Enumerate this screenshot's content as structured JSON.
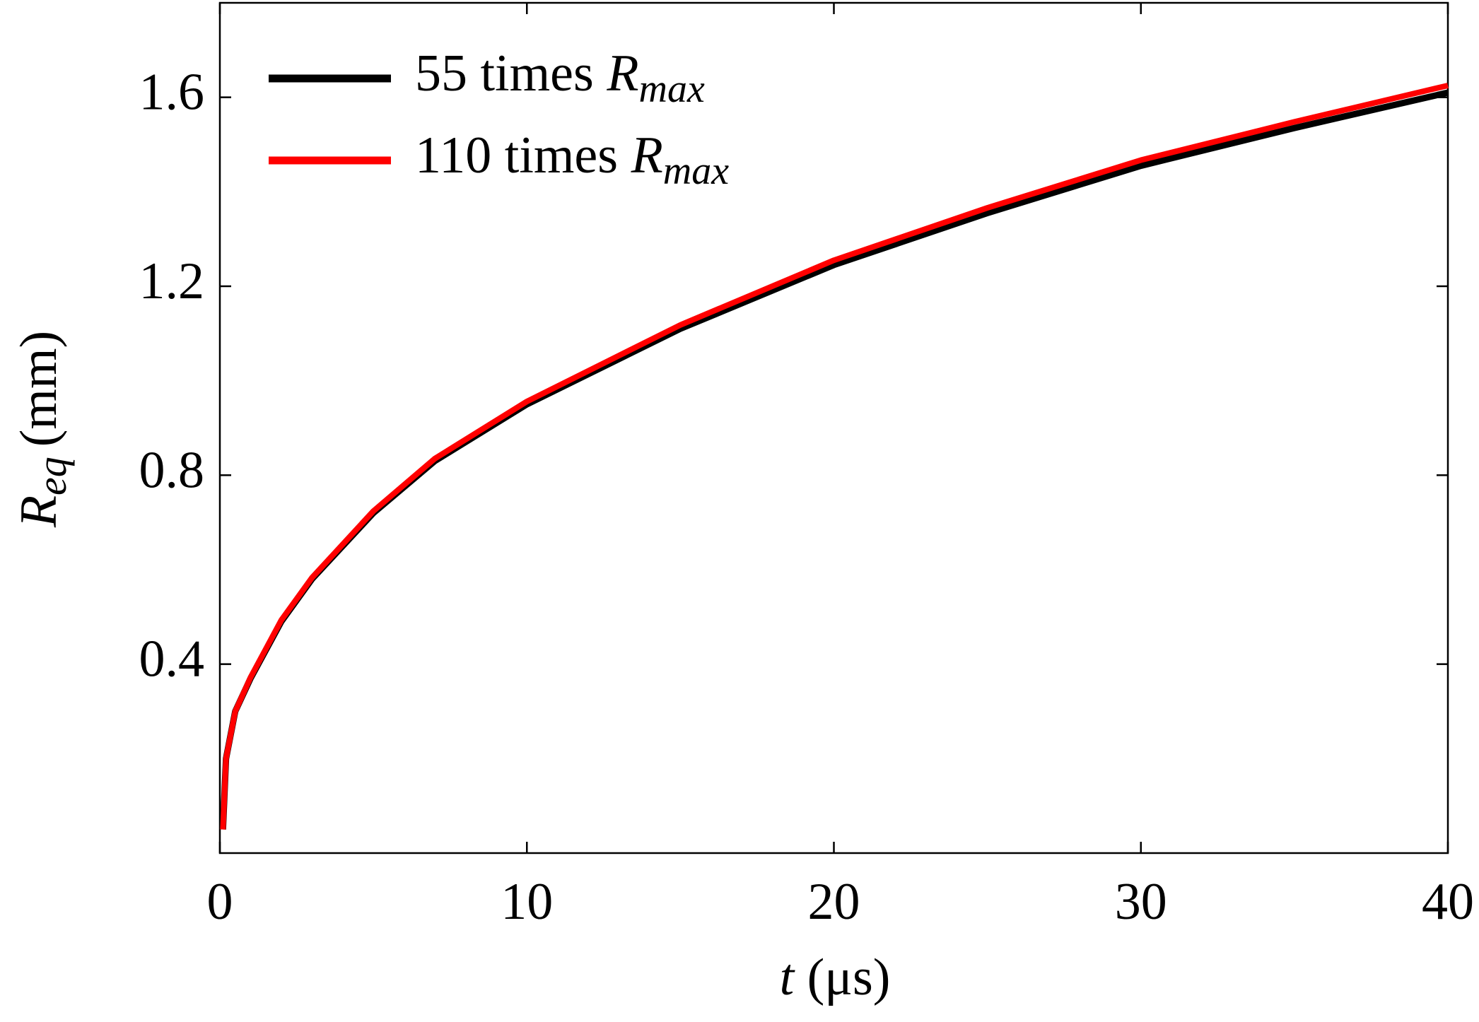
{
  "chart_data": {
    "type": "line",
    "x_label": {
      "symbol": "t",
      "unit": "(μs)"
    },
    "y_label": {
      "symbol": "R",
      "subscript": "eq",
      "unit": "(mm)"
    },
    "x": [
      0.1,
      0.2,
      0.5,
      1,
      2,
      3,
      5,
      7,
      10,
      15,
      20,
      25,
      30,
      35,
      40
    ],
    "series": [
      {
        "name": "55 times",
        "name_symbol": "R",
        "name_subscript": "max",
        "color": "#000000",
        "values": [
          0.05,
          0.2,
          0.3,
          0.37,
          0.49,
          0.58,
          0.72,
          0.83,
          0.95,
          1.11,
          1.245,
          1.355,
          1.455,
          1.535,
          1.61
        ]
      },
      {
        "name": "110 times",
        "name_symbol": "R",
        "name_subscript": "max",
        "color": "#ff0000",
        "values": [
          0.05,
          0.2,
          0.3,
          0.372,
          0.493,
          0.583,
          0.724,
          0.835,
          0.956,
          1.118,
          1.255,
          1.366,
          1.467,
          1.548,
          1.625
        ]
      }
    ],
    "xlim": [
      0,
      40
    ],
    "xticks": [
      0,
      10,
      20,
      30,
      40
    ],
    "ylim": [
      0,
      1.8
    ],
    "yticks": [
      0.4,
      0.8,
      1.2,
      1.6
    ],
    "legend": "upper left"
  }
}
